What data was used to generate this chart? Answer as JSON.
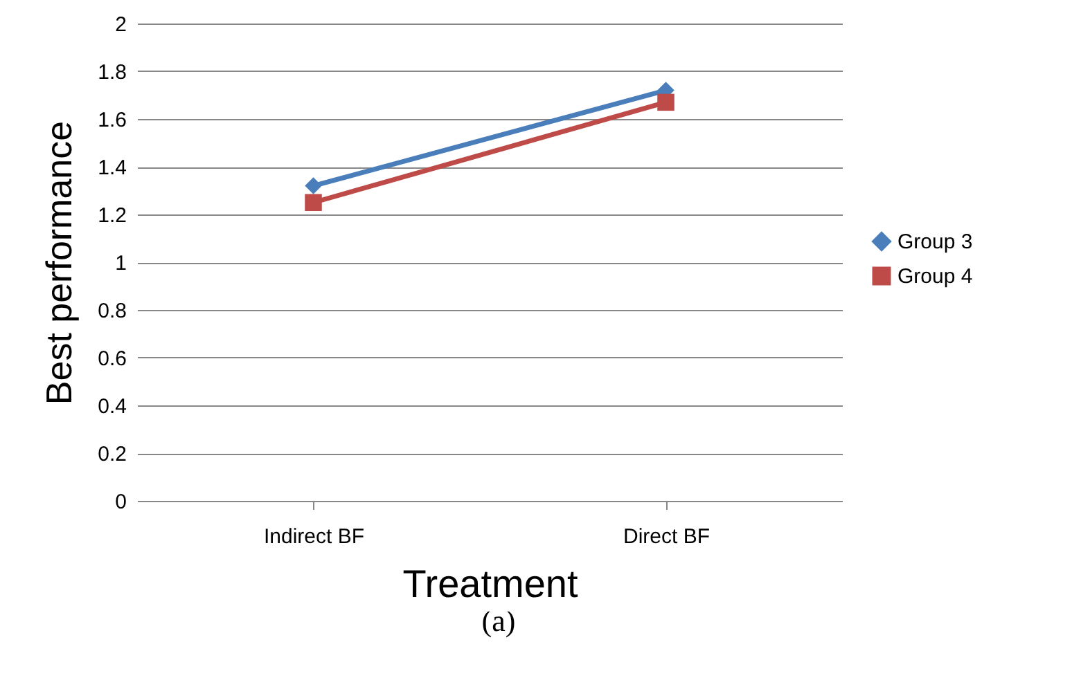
{
  "chart_data": {
    "type": "line",
    "xlabel": "Treatment",
    "ylabel": "Best performance",
    "categories": [
      "Indirect BF",
      "Direct BF"
    ],
    "series": [
      {
        "name": "Group 3",
        "color": "#4a7ebb",
        "values": [
          1.32,
          1.72
        ],
        "marker": "diamond"
      },
      {
        "name": "Group 4",
        "color": "#be4b48",
        "values": [
          1.25,
          1.67
        ],
        "marker": "square"
      }
    ],
    "ylim": [
      0,
      2
    ],
    "yticks": [
      0,
      0.2,
      0.4,
      0.6,
      0.8,
      1,
      1.2,
      1.4,
      1.6,
      1.8,
      2
    ],
    "grid": "y",
    "legend": "right",
    "annotations": [
      "(a)"
    ]
  }
}
